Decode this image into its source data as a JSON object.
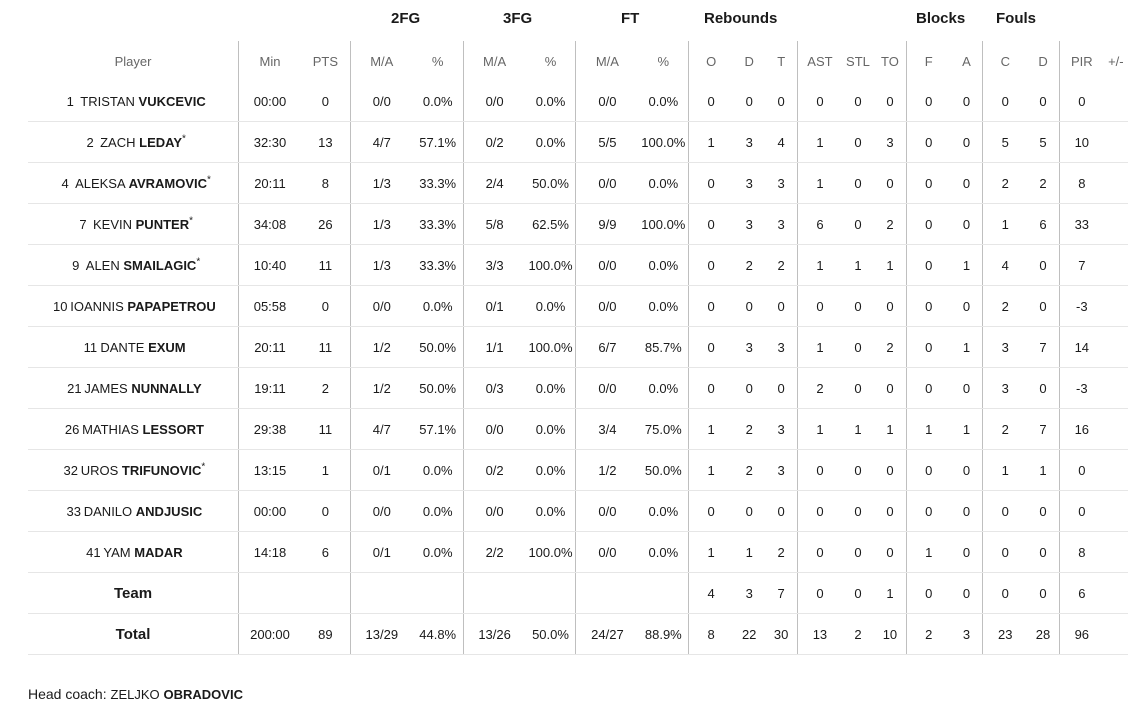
{
  "groups": {
    "two_fg": "2FG",
    "three_fg": "3FG",
    "ft": "FT",
    "rebounds": "Rebounds",
    "blocks": "Blocks",
    "fouls": "Fouls"
  },
  "columns": [
    "Player",
    "Min",
    "PTS",
    "M/A",
    "%",
    "M/A",
    "%",
    "M/A",
    "%",
    "O",
    "D",
    "T",
    "AST",
    "STL",
    "TO",
    "F",
    "A",
    "C",
    "D",
    "PIR",
    "+/-"
  ],
  "rows": [
    {
      "num": "1",
      "first": "TRISTAN",
      "last": "VUKCEVIC",
      "star": "",
      "cells": [
        "00:00",
        "0",
        "0/0",
        "0.0%",
        "0/0",
        "0.0%",
        "0/0",
        "0.0%",
        "0",
        "0",
        "0",
        "0",
        "0",
        "0",
        "0",
        "0",
        "0",
        "0",
        "0",
        ""
      ]
    },
    {
      "num": "2",
      "first": "ZACH",
      "last": "LEDAY",
      "star": "*",
      "cells": [
        "32:30",
        "13",
        "4/7",
        "57.1%",
        "0/2",
        "0.0%",
        "5/5",
        "100.0%",
        "1",
        "3",
        "4",
        "1",
        "0",
        "3",
        "0",
        "0",
        "5",
        "5",
        "10",
        ""
      ]
    },
    {
      "num": "4",
      "first": "ALEKSA",
      "last": "AVRAMOVIC",
      "star": "*",
      "cells": [
        "20:11",
        "8",
        "1/3",
        "33.3%",
        "2/4",
        "50.0%",
        "0/0",
        "0.0%",
        "0",
        "3",
        "3",
        "1",
        "0",
        "0",
        "0",
        "0",
        "2",
        "2",
        "8",
        ""
      ]
    },
    {
      "num": "7",
      "first": "KEVIN",
      "last": "PUNTER",
      "star": "*",
      "cells": [
        "34:08",
        "26",
        "1/3",
        "33.3%",
        "5/8",
        "62.5%",
        "9/9",
        "100.0%",
        "0",
        "3",
        "3",
        "6",
        "0",
        "2",
        "0",
        "0",
        "1",
        "6",
        "33",
        ""
      ]
    },
    {
      "num": "9",
      "first": "ALEN",
      "last": "SMAILAGIC",
      "star": "*",
      "cells": [
        "10:40",
        "11",
        "1/3",
        "33.3%",
        "3/3",
        "100.0%",
        "0/0",
        "0.0%",
        "0",
        "2",
        "2",
        "1",
        "1",
        "1",
        "0",
        "1",
        "4",
        "0",
        "7",
        ""
      ]
    },
    {
      "num": "10",
      "first": "IOANNIS",
      "last": "PAPAPETROU",
      "star": "",
      "cells": [
        "05:58",
        "0",
        "0/0",
        "0.0%",
        "0/1",
        "0.0%",
        "0/0",
        "0.0%",
        "0",
        "0",
        "0",
        "0",
        "0",
        "0",
        "0",
        "0",
        "2",
        "0",
        "-3",
        ""
      ]
    },
    {
      "num": "11",
      "first": "DANTE",
      "last": "EXUM",
      "star": "",
      "cells": [
        "20:11",
        "11",
        "1/2",
        "50.0%",
        "1/1",
        "100.0%",
        "6/7",
        "85.7%",
        "0",
        "3",
        "3",
        "1",
        "0",
        "2",
        "0",
        "1",
        "3",
        "7",
        "14",
        ""
      ]
    },
    {
      "num": "21",
      "first": "JAMES",
      "last": "NUNNALLY",
      "star": "",
      "cells": [
        "19:11",
        "2",
        "1/2",
        "50.0%",
        "0/3",
        "0.0%",
        "0/0",
        "0.0%",
        "0",
        "0",
        "0",
        "2",
        "0",
        "0",
        "0",
        "0",
        "3",
        "0",
        "-3",
        ""
      ]
    },
    {
      "num": "26",
      "first": "MATHIAS",
      "last": "LESSORT",
      "star": "",
      "cells": [
        "29:38",
        "11",
        "4/7",
        "57.1%",
        "0/0",
        "0.0%",
        "3/4",
        "75.0%",
        "1",
        "2",
        "3",
        "1",
        "1",
        "1",
        "1",
        "1",
        "2",
        "7",
        "16",
        ""
      ]
    },
    {
      "num": "32",
      "first": "UROS",
      "last": "TRIFUNOVIC",
      "star": "*",
      "cells": [
        "13:15",
        "1",
        "0/1",
        "0.0%",
        "0/2",
        "0.0%",
        "1/2",
        "50.0%",
        "1",
        "2",
        "3",
        "0",
        "0",
        "0",
        "0",
        "0",
        "1",
        "1",
        "0",
        ""
      ]
    },
    {
      "num": "33",
      "first": "DANILO",
      "last": "ANDJUSIC",
      "star": "",
      "cells": [
        "00:00",
        "0",
        "0/0",
        "0.0%",
        "0/0",
        "0.0%",
        "0/0",
        "0.0%",
        "0",
        "0",
        "0",
        "0",
        "0",
        "0",
        "0",
        "0",
        "0",
        "0",
        "0",
        ""
      ]
    },
    {
      "num": "41",
      "first": "YAM",
      "last": "MADAR",
      "star": "",
      "cells": [
        "14:18",
        "6",
        "0/1",
        "0.0%",
        "2/2",
        "100.0%",
        "0/0",
        "0.0%",
        "1",
        "1",
        "2",
        "0",
        "0",
        "0",
        "1",
        "0",
        "0",
        "0",
        "8",
        ""
      ]
    }
  ],
  "team_row": {
    "label": "Team",
    "cells": [
      "",
      "",
      "",
      "",
      "",
      "",
      "",
      "",
      "4",
      "3",
      "7",
      "0",
      "0",
      "1",
      "0",
      "0",
      "0",
      "0",
      "6",
      ""
    ]
  },
  "total_row": {
    "label": "Total",
    "cells": [
      "200:00",
      "89",
      "13/29",
      "44.8%",
      "13/26",
      "50.0%",
      "24/27",
      "88.9%",
      "8",
      "22",
      "30",
      "13",
      "2",
      "10",
      "2",
      "3",
      "23",
      "28",
      "96",
      ""
    ]
  },
  "coach": {
    "label": "Head coach:",
    "first": "ZELJKO",
    "last": "OBRADOVIC"
  }
}
